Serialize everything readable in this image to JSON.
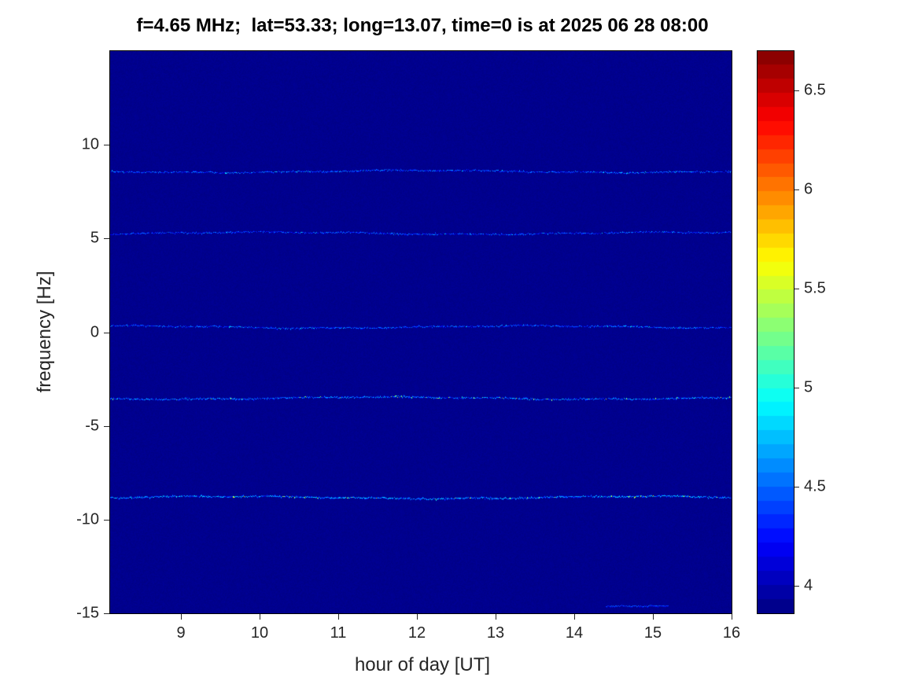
{
  "chart_data": {
    "type": "heatmap",
    "title": "f=4.65 MHz;  lat=53.33; long=13.07, time=0 is at 2025 06 28 08:00",
    "xlabel": "hour of day [UT]",
    "ylabel": "frequency [Hz]",
    "x_range": [
      8.1,
      16
    ],
    "y_range": [
      -15,
      15
    ],
    "x_ticks": [
      9,
      10,
      11,
      12,
      13,
      14,
      15,
      16
    ],
    "y_ticks": [
      10,
      5,
      0,
      -5,
      -10,
      -15
    ],
    "colormap": "jet",
    "color_range": [
      3.86,
      6.7
    ],
    "colorbar_ticks": [
      6.5,
      6,
      5.5,
      5,
      4.5,
      4
    ],
    "background_value": 3.9,
    "grid": false,
    "legend": "colorbar-right",
    "spectral_lines": [
      {
        "frequency_hz": 8.6,
        "mean_intensity": 4.45,
        "peak_intensity": 5.0
      },
      {
        "frequency_hz": 5.3,
        "mean_intensity": 4.4,
        "peak_intensity": 4.9
      },
      {
        "frequency_hz": 0.3,
        "mean_intensity": 4.45,
        "peak_intensity": 5.0
      },
      {
        "frequency_hz": -3.5,
        "mean_intensity": 4.55,
        "peak_intensity": 5.6
      },
      {
        "frequency_hz": -8.8,
        "mean_intensity": 4.65,
        "peak_intensity": 5.7
      }
    ],
    "artifacts": [
      {
        "frequency_hz": -14.6,
        "x_start_hour": 14.4,
        "x_end_hour": 15.2,
        "intensity": 4.4
      }
    ]
  }
}
